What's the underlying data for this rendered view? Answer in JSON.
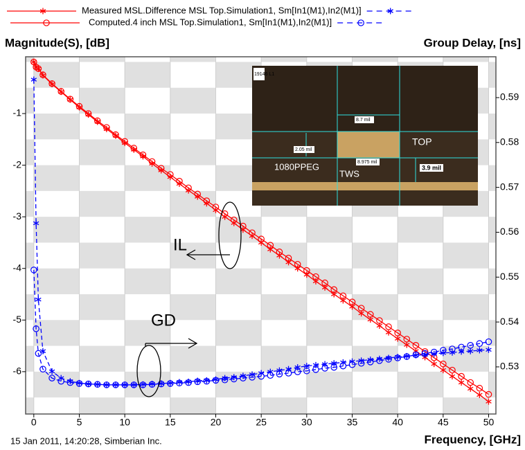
{
  "chart_data": {
    "type": "line",
    "legend": [
      {
        "label": "Measured MSL.Difference MSL Top.Simulation1, Sm[In1(M1),In2(M1)]",
        "marker": "star"
      },
      {
        "label": "Computed.4 inch MSL Top.Simulation1, Sm[In1(M1),In2(M1)]",
        "marker": "circle"
      }
    ],
    "y_label": "Magnitude(S), [dB]",
    "y2_label": "Group Delay, [ns]",
    "x_label": "Frequency, [GHz]",
    "footer": "15 Jan 2011, 14:20:28, Simberian Inc.",
    "annotations": [
      "IL",
      "GD"
    ],
    "inset_labels": [
      "19146 L1",
      "8.7 mil",
      "2.05 mil",
      "8.975 mil",
      "TOP",
      "3.9 mil",
      "1080PPEG",
      "TWS"
    ],
    "grid": "checker",
    "xlim": [
      -0.9,
      50.8
    ],
    "xticks": [
      0,
      5,
      10,
      15,
      20,
      25,
      30,
      35,
      40,
      45,
      50
    ],
    "ylim": [
      -6.82,
      0.1
    ],
    "yticks": [
      -6,
      -5,
      -4,
      -3,
      -2,
      -1
    ],
    "y2lim": [
      0.5195,
      0.5991
    ],
    "y2ticks": [
      0.53,
      0.54,
      0.55,
      0.56,
      0.57,
      0.58,
      0.59
    ],
    "x": [
      0,
      0.25,
      0.5,
      1,
      2,
      3,
      4,
      5,
      6,
      7,
      8,
      9,
      10,
      11,
      12,
      13,
      14,
      15,
      16,
      17,
      18,
      19,
      20,
      21,
      22,
      23,
      24,
      25,
      26,
      27,
      28,
      29,
      30,
      31,
      32,
      33,
      34,
      35,
      36,
      37,
      38,
      39,
      40,
      41,
      42,
      43,
      44,
      45,
      46,
      47,
      48,
      49,
      50
    ],
    "series": [
      {
        "color": "#ff0000",
        "marker": "star",
        "dash": false,
        "axis": "y",
        "values": [
          0,
          -0.1,
          -0.13,
          -0.26,
          -0.43,
          -0.58,
          -0.73,
          -0.88,
          -1.02,
          -1.16,
          -1.3,
          -1.43,
          -1.57,
          -1.7,
          -1.83,
          -1.97,
          -2.1,
          -2.23,
          -2.36,
          -2.49,
          -2.61,
          -2.74,
          -2.87,
          -3,
          -3.12,
          -3.25,
          -3.37,
          -3.5,
          -3.63,
          -3.75,
          -3.88,
          -4,
          -4.12,
          -4.25,
          -4.37,
          -4.5,
          -4.62,
          -4.74,
          -4.87,
          -4.99,
          -5.11,
          -5.24,
          -5.36,
          -5.48,
          -5.6,
          -5.72,
          -5.85,
          -5.97,
          -6.09,
          -6.21,
          -6.33,
          -6.45,
          -6.58
        ]
      },
      {
        "color": "#ff0000",
        "marker": "circle",
        "dash": false,
        "axis": "y",
        "values": [
          0,
          -0.1,
          -0.13,
          -0.25,
          -0.42,
          -0.57,
          -0.72,
          -0.86,
          -1,
          -1.14,
          -1.27,
          -1.41,
          -1.54,
          -1.67,
          -1.8,
          -1.93,
          -2.06,
          -2.18,
          -2.31,
          -2.44,
          -2.56,
          -2.69,
          -2.81,
          -2.94,
          -3.06,
          -3.18,
          -3.31,
          -3.43,
          -3.55,
          -3.68,
          -3.8,
          -3.92,
          -4.04,
          -4.16,
          -4.28,
          -4.41,
          -4.53,
          -4.65,
          -4.77,
          -4.89,
          -5.01,
          -5.13,
          -5.25,
          -5.37,
          -5.49,
          -5.61,
          -5.73,
          -5.85,
          -5.97,
          -6.09,
          -6.21,
          -6.32,
          -6.44
        ]
      },
      {
        "color": "#0000ff",
        "marker": "star",
        "dash": true,
        "axis": "y2",
        "values": [
          0.594,
          0.562,
          0.545,
          0.5335,
          0.529,
          0.5275,
          0.5268,
          0.5264,
          0.5262,
          0.5261,
          0.526,
          0.526,
          0.526,
          0.526,
          0.5261,
          0.5262,
          0.5263,
          0.5264,
          0.5266,
          0.5267,
          0.5269,
          0.527,
          0.5272,
          0.5275,
          0.5277,
          0.528,
          0.5283,
          0.5286,
          0.5289,
          0.5292,
          0.5295,
          0.5299,
          0.5302,
          0.5304,
          0.5306,
          0.5308,
          0.531,
          0.5312,
          0.5314,
          0.5316,
          0.5318,
          0.532,
          0.5322,
          0.5324,
          0.5326,
          0.5327,
          0.5329,
          0.5331,
          0.5332,
          0.5334,
          0.5335,
          0.5337,
          0.5338
        ]
      },
      {
        "color": "#0000ff",
        "marker": "circle",
        "dash": true,
        "axis": "y2",
        "values": [
          0.5516,
          0.5385,
          0.533,
          0.5295,
          0.5275,
          0.5268,
          0.5265,
          0.5263,
          0.5262,
          0.5261,
          0.526,
          0.526,
          0.526,
          0.526,
          0.526,
          0.5261,
          0.5262,
          0.5263,
          0.5264,
          0.5265,
          0.5267,
          0.5268,
          0.527,
          0.5271,
          0.5273,
          0.5275,
          0.5277,
          0.5279,
          0.5281,
          0.5284,
          0.5286,
          0.5289,
          0.5291,
          0.5294,
          0.5297,
          0.5299,
          0.5302,
          0.5305,
          0.5308,
          0.5311,
          0.5314,
          0.5317,
          0.532,
          0.5323,
          0.5327,
          0.533,
          0.5333,
          0.5337,
          0.534,
          0.5344,
          0.5348,
          0.5352,
          0.5356
        ]
      }
    ]
  }
}
